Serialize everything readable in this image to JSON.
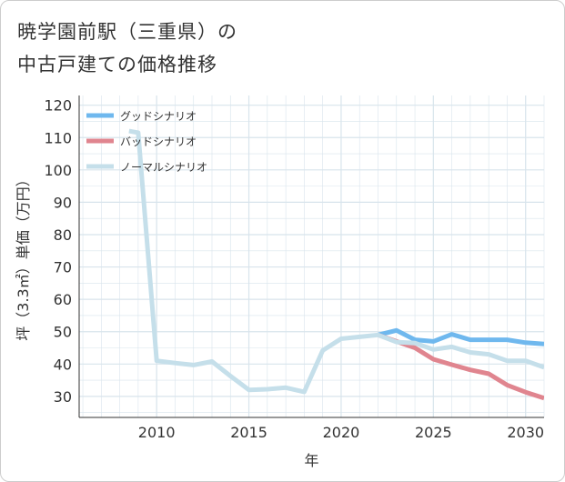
{
  "page": {
    "title_line1": "暁学園前駅（三重県）の",
    "title_line2": "中古戸建ての価格推移"
  },
  "colors": {
    "good": "#6fb8ee",
    "bad": "#e0858f",
    "normal": "#c5dfea",
    "grid": "#d8e4ec",
    "axis": "#333333"
  },
  "chart_data": {
    "type": "line",
    "title": "暁学園前駅（三重県）の中古戸建ての価格推移",
    "xlabel": "年",
    "ylabel": "坪（3.3㎡）単価（万円）",
    "xlim": [
      2005.8,
      2031
    ],
    "ylim": [
      23.5,
      123
    ],
    "xticks": [
      2010,
      2015,
      2020,
      2025,
      2030
    ],
    "yticks": [
      30,
      40,
      50,
      60,
      70,
      80,
      90,
      100,
      110,
      120
    ],
    "legend_position": "top-left",
    "series": [
      {
        "name": "グッドシナリオ",
        "color": "#6fb8ee",
        "x": [
          2022,
          2023,
          2024,
          2025,
          2026,
          2027,
          2028,
          2029,
          2030,
          2031
        ],
        "values": [
          49,
          50.4,
          47.5,
          47,
          49.2,
          47.5,
          47.5,
          47.5,
          46.6,
          46.2
        ]
      },
      {
        "name": "バッドシナリオ",
        "color": "#e0858f",
        "x": [
          2022,
          2023,
          2024,
          2025,
          2026,
          2027,
          2028,
          2029,
          2030,
          2031
        ],
        "values": [
          49,
          47,
          45,
          41.5,
          39.8,
          38.2,
          37,
          33.5,
          31.3,
          29.5
        ]
      },
      {
        "name": "ノーマルシナリオ",
        "color": "#c5dfea",
        "x": [
          2008.5,
          2009,
          2010,
          2011,
          2012,
          2013,
          2014,
          2015,
          2016,
          2017,
          2018,
          2019,
          2020,
          2021,
          2022,
          2023,
          2024,
          2025,
          2026,
          2027,
          2028,
          2029,
          2030,
          2031
        ],
        "values": [
          112,
          111.5,
          41,
          40.3,
          39.7,
          40.8,
          36.3,
          32,
          32.2,
          32.7,
          31.4,
          44.2,
          47.8,
          48.4,
          49,
          46.8,
          46.5,
          44.5,
          45.3,
          43.6,
          43,
          41,
          41,
          39
        ]
      }
    ]
  }
}
